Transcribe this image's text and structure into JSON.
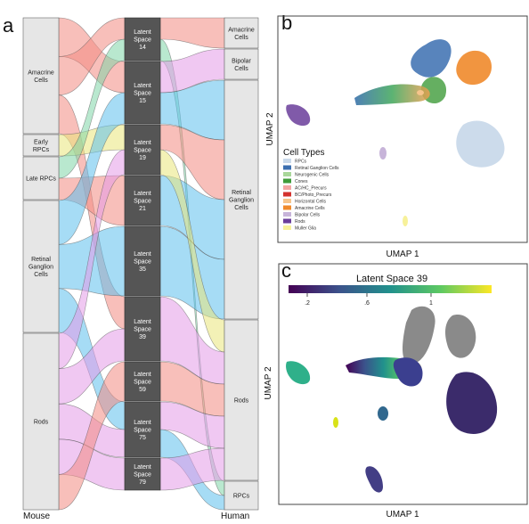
{
  "panels": {
    "a": "a",
    "b": "b",
    "c": "c"
  },
  "chart_data": [
    {
      "type": "sankey",
      "left_axis_label": "Mouse",
      "right_axis_label": "Human",
      "left_nodes": [
        "Amacrine Cells",
        "Early RPCs",
        "Late RPCs",
        "Retinal Ganglion Cells",
        "Rods"
      ],
      "middle_nodes": [
        "Latent Space 14",
        "Latent Space 15",
        "Latent Space 19",
        "Latent Space 21",
        "Latent Space 35",
        "Latent Space 39",
        "Latent Space 59",
        "Latent Space 75",
        "Latent Space 79"
      ],
      "right_nodes": [
        "Amacrine Cells",
        "Bipolar Cells",
        "Retinal Ganglion Cells",
        "Rods",
        "RPCs"
      ]
    },
    {
      "type": "scatter",
      "xlabel": "UMAP 1",
      "ylabel": "UMAP 2",
      "legend_title": "Cell Types",
      "legend": [
        {
          "name": "RPCs",
          "color": "#c9d9ea"
        },
        {
          "name": "Retinal Ganglion Cells",
          "color": "#3b6fb0"
        },
        {
          "name": "Neurogenic Cells",
          "color": "#a9d79a"
        },
        {
          "name": "Cones",
          "color": "#3f9b3a"
        },
        {
          "name": "AC/HC_Precurs",
          "color": "#f3a6a3"
        },
        {
          "name": "BC/Photo_Precurs",
          "color": "#d3322f"
        },
        {
          "name": "Horizontal Cells",
          "color": "#f6c58c"
        },
        {
          "name": "Amacrine Cells",
          "color": "#f08a2b"
        },
        {
          "name": "Bipolar Cells",
          "color": "#c7b4d9"
        },
        {
          "name": "Rods",
          "color": "#6a3d9a"
        },
        {
          "name": "Muller Glia",
          "color": "#f7f19a"
        }
      ]
    },
    {
      "type": "scatter",
      "title": "Latent Space 39",
      "xlabel": "UMAP 1",
      "ylabel": "UMAP 2",
      "colorbar_ticks": [
        ".2",
        ".6",
        "1"
      ]
    }
  ]
}
